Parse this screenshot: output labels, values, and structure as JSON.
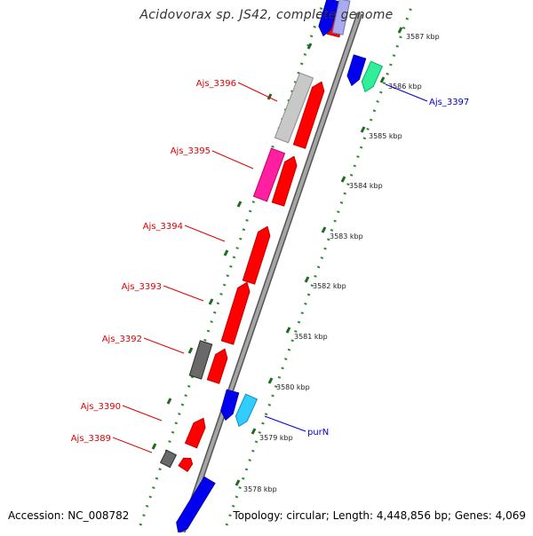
{
  "title": "Acidovorax sp. JS42, complete genome",
  "footer": {
    "accession": "Accession: NC_008782",
    "summary": "Topology: circular; Length: 4,448,856 bp; Genes: 4,069"
  },
  "colors": {
    "red": "#ff0000",
    "blue": "#0000ee",
    "light_gray": "#c8c8c8",
    "pink": "#ff1fa0",
    "dark_gray": "#696969",
    "sea_green": "#33ee99",
    "cyan": "#33ccff",
    "tick_green": "#2e8b2e",
    "backbone": "#888888",
    "label_red": "#dd0000",
    "label_blue": "#0000cc"
  },
  "ticks": [
    "3587 kbp",
    "3586 kbp",
    "3585 kbp",
    "3584 kbp",
    "3583 kbp",
    "3582 kbp",
    "3581 kbp",
    "3580 kbp",
    "3579 kbp",
    "3578 kbp"
  ],
  "gene_labels": [
    "Ajs_3396",
    "Ajs_3395",
    "Ajs_3394",
    "Ajs_3393",
    "Ajs_3392",
    "Ajs_3390",
    "Ajs_3389",
    "Ajs_3397",
    "purN"
  ]
}
